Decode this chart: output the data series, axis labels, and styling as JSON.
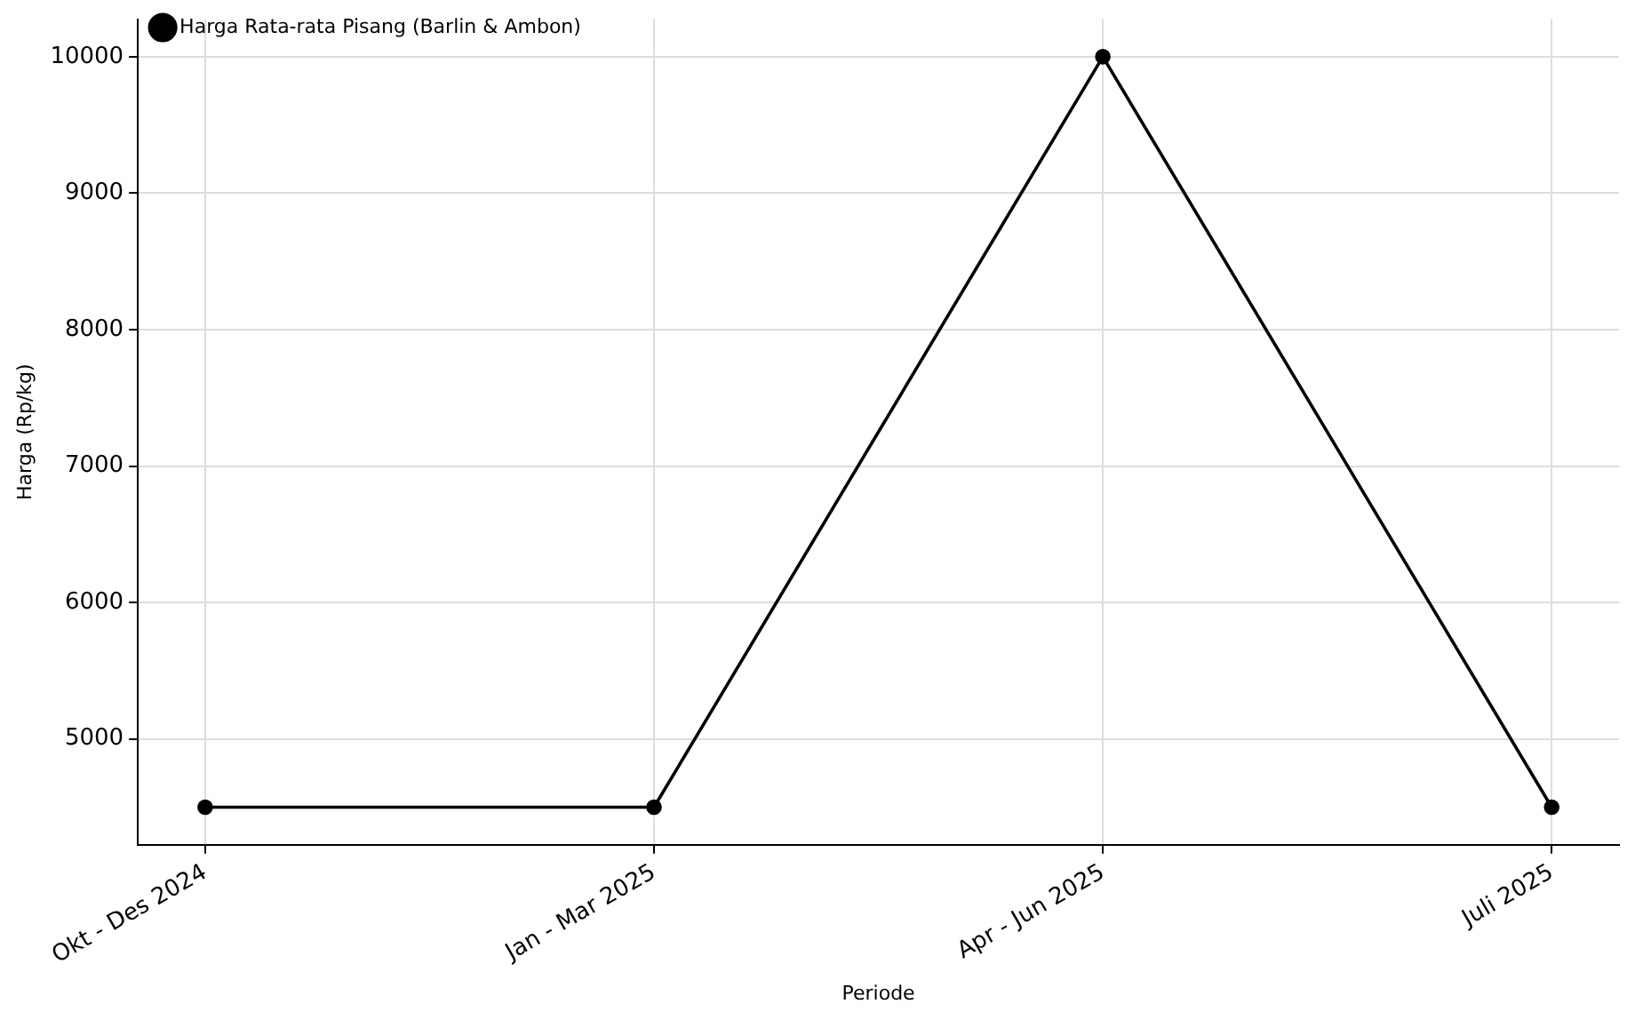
{
  "chart_data": {
    "type": "line",
    "xlabel": "Periode",
    "ylabel": "Harga (Rp/kg)",
    "categories": [
      "Okt - Des 2024",
      "Jan - Mar 2025",
      "Apr - Jun 2025",
      "Juli 2025"
    ],
    "series": [
      {
        "name": "Harga Rata-rata Pisang (Barlin & Ambon)",
        "color": "#000000",
        "values": [
          4500,
          4500,
          10000,
          4500
        ]
      }
    ],
    "ylim": [
      4225,
      10275
    ],
    "yticks": [
      5000,
      6000,
      7000,
      8000,
      9000,
      10000
    ],
    "grid": true,
    "legend": "top left",
    "marker": "circle",
    "line_style": "solid"
  }
}
